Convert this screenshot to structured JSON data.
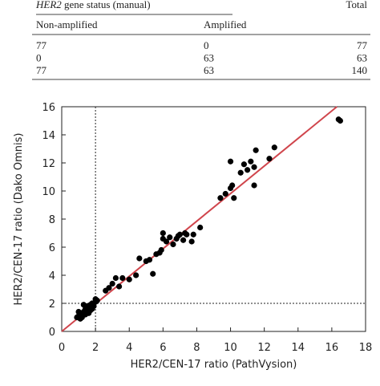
{
  "table": {
    "header": {
      "gene_italic": "HER2",
      "gene_rest": "gene status (manual)",
      "total": "Total"
    },
    "subheader": [
      "Non-amplified",
      "Amplified"
    ],
    "rows": [
      [
        "77",
        "0",
        "77"
      ],
      [
        "0",
        "63",
        "63"
      ],
      [
        "77",
        "63",
        "140"
      ]
    ]
  },
  "chart_data": {
    "type": "scatter",
    "x_label": "HER2/CEN-17 ratio (PathVysion)",
    "y_label": "HER2/CEN-17 ratio (Dako Omnis)",
    "xlim": [
      0,
      18
    ],
    "ylim": [
      0,
      16
    ],
    "xticks": [
      0,
      2,
      4,
      6,
      8,
      10,
      12,
      14,
      16,
      18
    ],
    "yticks": [
      0,
      2,
      4,
      6,
      8,
      10,
      12,
      14,
      16
    ],
    "color": "#000000",
    "x": [
      0.9,
      1.0,
      1.1,
      1.2,
      1.2,
      1.3,
      1.4,
      1.4,
      1.5,
      1.5,
      1.6,
      1.6,
      1.7,
      1.7,
      1.8,
      1.8,
      1.9,
      2.0,
      2.0,
      2.1,
      1.3,
      1.0,
      1.1,
      2.6,
      2.8,
      3.0,
      3.2,
      3.4,
      3.6,
      4.0,
      4.4,
      4.6,
      5.0,
      5.2,
      5.4,
      5.8,
      5.9,
      6.0,
      6.0,
      6.4,
      6.6,
      6.8,
      7.0,
      6.9,
      7.2,
      7.3,
      7.4,
      7.7,
      7.8,
      8.2,
      5.6,
      6.2,
      9.4,
      9.7,
      10.0,
      10.1,
      10.0,
      10.2,
      10.6,
      10.8,
      11.0,
      11.2,
      11.4,
      11.4,
      11.5,
      12.3,
      12.6,
      16.4,
      16.5
    ],
    "y": [
      1.0,
      1.1,
      1.2,
      1.0,
      1.3,
      1.4,
      1.2,
      1.6,
      1.5,
      1.8,
      1.3,
      1.7,
      1.5,
      1.9,
      1.6,
      2.0,
      1.8,
      2.1,
      2.3,
      2.2,
      1.9,
      1.4,
      0.9,
      2.9,
      3.1,
      3.4,
      3.8,
      3.2,
      3.8,
      3.7,
      4.0,
      5.2,
      5.0,
      5.1,
      4.1,
      5.6,
      5.8,
      6.6,
      7.0,
      6.7,
      6.2,
      6.6,
      6.9,
      6.8,
      6.5,
      7.0,
      6.9,
      6.4,
      6.9,
      7.4,
      5.5,
      6.4,
      9.5,
      9.8,
      10.2,
      10.4,
      12.1,
      9.5,
      11.3,
      11.9,
      11.5,
      12.1,
      11.7,
      10.4,
      12.9,
      12.3,
      13.1,
      15.1,
      15.0
    ],
    "fit_line": {
      "x": [
        0,
        16.3
      ],
      "y": [
        0,
        16
      ],
      "color": "#d0454c"
    },
    "cutoff": {
      "x": 2,
      "y": 2
    }
  }
}
